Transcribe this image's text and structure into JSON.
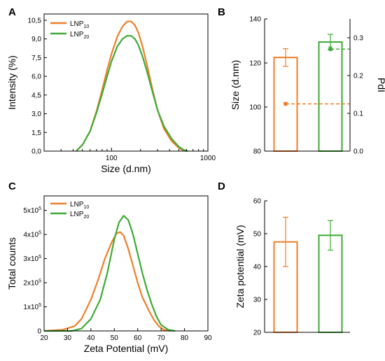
{
  "colors": {
    "lnp10": "#f07f2a",
    "lnp20": "#3faa35",
    "axis": "#000000"
  },
  "panels": {
    "A": {
      "letter": "A"
    },
    "B": {
      "letter": "B"
    },
    "C": {
      "letter": "C"
    },
    "D": {
      "letter": "D"
    }
  },
  "legend": {
    "lnp10": {
      "base": "LNP",
      "sub": "10"
    },
    "lnp20": {
      "base": "LNP",
      "sub": "20"
    }
  },
  "chart_data": [
    {
      "panel": "A",
      "type": "line",
      "xlabel": "Size (d.nm)",
      "ylabel": "Intensity (%)",
      "xscale": "log",
      "xlim": [
        20,
        1000
      ],
      "ylim": [
        0,
        11
      ],
      "xticks": [
        {
          "value": 100,
          "label": "100"
        },
        {
          "value": 1000,
          "label": "1000"
        }
      ],
      "yticks": [
        {
          "value": 0,
          "label": "0,0"
        },
        {
          "value": 1.5,
          "label": "1,5"
        },
        {
          "value": 3,
          "label": "3,0"
        },
        {
          "value": 4.5,
          "label": "4,5"
        },
        {
          "value": 6,
          "label": "6,0"
        },
        {
          "value": 7.5,
          "label": "7,5"
        },
        {
          "value": 9,
          "label": "9,0"
        },
        {
          "value": 10.5,
          "label": "10,5"
        }
      ],
      "legend_position": "top-left",
      "series": [
        {
          "name": "LNP10",
          "color_key": "lnp10",
          "x": [
            43,
            50,
            60,
            70,
            80,
            90,
            100,
            115,
            130,
            145,
            160,
            175,
            190,
            210,
            235,
            265,
            300,
            350,
            420,
            500,
            560,
            600
          ],
          "y": [
            0.0,
            0.5,
            1.6,
            3.2,
            4.9,
            6.5,
            7.8,
            9.2,
            10.0,
            10.4,
            10.4,
            10.1,
            9.5,
            8.4,
            6.8,
            5.0,
            3.3,
            1.8,
            0.8,
            0.25,
            0.05,
            0.0
          ]
        },
        {
          "name": "LNP20",
          "color_key": "lnp20",
          "x": [
            43,
            50,
            60,
            70,
            80,
            90,
            100,
            115,
            130,
            145,
            160,
            175,
            190,
            210,
            235,
            265,
            300,
            350,
            420,
            500,
            560,
            620
          ],
          "y": [
            0.0,
            0.5,
            1.6,
            3.1,
            4.6,
            6.0,
            7.2,
            8.4,
            9.0,
            9.25,
            9.25,
            9.0,
            8.5,
            7.6,
            6.3,
            4.8,
            3.3,
            2.0,
            1.0,
            0.35,
            0.1,
            0.0
          ]
        }
      ]
    },
    {
      "panel": "B",
      "type": "bar",
      "ylabel": "Size (d.nm)",
      "y2label": "PdI",
      "ylim": [
        80,
        140
      ],
      "y2lim": [
        0,
        0.35
      ],
      "yticks": [
        {
          "value": 80,
          "label": "80"
        },
        {
          "value": 100,
          "label": "100"
        },
        {
          "value": 120,
          "label": "120"
        },
        {
          "value": 140,
          "label": "140"
        }
      ],
      "y2ticks": [
        {
          "value": 0,
          "label": "0.0"
        },
        {
          "value": 0.1,
          "label": "0.1"
        },
        {
          "value": 0.2,
          "label": "0.2"
        },
        {
          "value": 0.3,
          "label": "0.3"
        }
      ],
      "bars": [
        {
          "color_key": "lnp10",
          "value": 122.5,
          "err": 4.0,
          "pdi": 0.125,
          "pdi_err": 0.004
        },
        {
          "color_key": "lnp20",
          "value": 129.5,
          "err": 3.5,
          "pdi": 0.27,
          "pdi_err": 0.006
        }
      ]
    },
    {
      "panel": "C",
      "type": "line",
      "xlabel": "Zeta Potential (mV)",
      "ylabel": "Total counts",
      "xlim": [
        20,
        90
      ],
      "ylim": [
        0,
        560000
      ],
      "xticks": [
        {
          "value": 20,
          "label": "20"
        },
        {
          "value": 30,
          "label": "30"
        },
        {
          "value": 40,
          "label": "40"
        },
        {
          "value": 50,
          "label": "50"
        },
        {
          "value": 60,
          "label": "60"
        },
        {
          "value": 70,
          "label": "70"
        },
        {
          "value": 80,
          "label": "80"
        },
        {
          "value": 90,
          "label": "90"
        }
      ],
      "yticks": [
        {
          "value": 0,
          "base": "0",
          "exp": ""
        },
        {
          "value": 100000,
          "base": "1x10",
          "exp": "5"
        },
        {
          "value": 200000,
          "base": "2x10",
          "exp": "5"
        },
        {
          "value": 300000,
          "base": "3x10",
          "exp": "5"
        },
        {
          "value": 400000,
          "base": "4x10",
          "exp": "5"
        },
        {
          "value": 500000,
          "base": "5x10",
          "exp": "5"
        }
      ],
      "legend_position": "top-left",
      "series": [
        {
          "name": "LNP10",
          "color_key": "lnp10",
          "x": [
            20,
            28,
            33,
            36,
            40,
            43,
            46,
            49,
            51,
            52.5,
            54,
            56,
            58,
            60,
            62,
            63,
            65,
            67,
            69,
            71,
            74
          ],
          "y": [
            0,
            5000,
            20000,
            50000,
            130000,
            210000,
            300000,
            370000,
            405000,
            410000,
            395000,
            340000,
            270000,
            200000,
            140000,
            120000,
            80000,
            45000,
            20000,
            5000,
            0
          ]
        },
        {
          "name": "LNP20",
          "color_key": "lnp20",
          "x": [
            20,
            32,
            36,
            40,
            44,
            47,
            50,
            52,
            54,
            56,
            58,
            60,
            62,
            64,
            66,
            68,
            70,
            73,
            76
          ],
          "y": [
            0,
            0,
            10000,
            50000,
            130000,
            240000,
            380000,
            450000,
            478000,
            460000,
            400000,
            320000,
            240000,
            170000,
            110000,
            60000,
            25000,
            5000,
            0
          ]
        }
      ]
    },
    {
      "panel": "D",
      "type": "bar",
      "ylabel": "Zeta potential (mV)",
      "ylim": [
        20,
        60
      ],
      "yticks": [
        {
          "value": 20,
          "label": "20"
        },
        {
          "value": 30,
          "label": "30"
        },
        {
          "value": 40,
          "label": "40"
        },
        {
          "value": 50,
          "label": "50"
        },
        {
          "value": 60,
          "label": "60"
        }
      ],
      "bars": [
        {
          "color_key": "lnp10",
          "value": 47.5,
          "err": 7.5
        },
        {
          "color_key": "lnp20",
          "value": 49.5,
          "err": 4.5
        }
      ]
    }
  ]
}
